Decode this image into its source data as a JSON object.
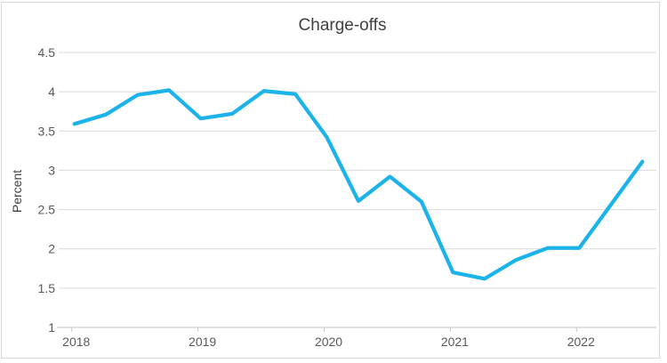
{
  "window": {
    "background_color": "#FFFFFF",
    "border_color": "#D9D9D9"
  },
  "chart_data": {
    "type": "line",
    "title": "Charge-offs",
    "xlabel": "",
    "ylabel": "Percent",
    "categories": [
      "2018 Q1",
      "2018 Q2",
      "2018 Q3",
      "2018 Q4",
      "2019 Q1",
      "2019 Q2",
      "2019 Q3",
      "2019 Q4",
      "2020 Q1",
      "2020 Q2",
      "2020 Q3",
      "2020 Q4",
      "2021 Q1",
      "2021 Q2",
      "2021 Q3",
      "2021 Q4",
      "2022 Q1",
      "2022 Q2",
      "2022 Q3"
    ],
    "series": [
      {
        "name": "Charge-offs",
        "values": [
          3.59,
          3.71,
          3.96,
          4.02,
          3.66,
          3.72,
          4.01,
          3.97,
          3.42,
          2.61,
          2.92,
          2.6,
          1.7,
          1.62,
          1.86,
          2.01,
          2.01,
          2.56,
          3.11
        ]
      }
    ],
    "x_tick_labels": [
      "2018",
      "2019",
      "2020",
      "2021",
      "2022"
    ],
    "quarters_per_year": 4,
    "ylim": [
      1,
      4.5
    ],
    "ytick_step": 0.5,
    "grid": "horizontal",
    "legend_position": "none",
    "colors": {
      "line": "#1BB3EA",
      "gridline": "#D9D9D9",
      "axis_line": "#C6C6C6",
      "tick_label": "#595959",
      "title": "#404040",
      "axis_title": "#404040"
    }
  }
}
